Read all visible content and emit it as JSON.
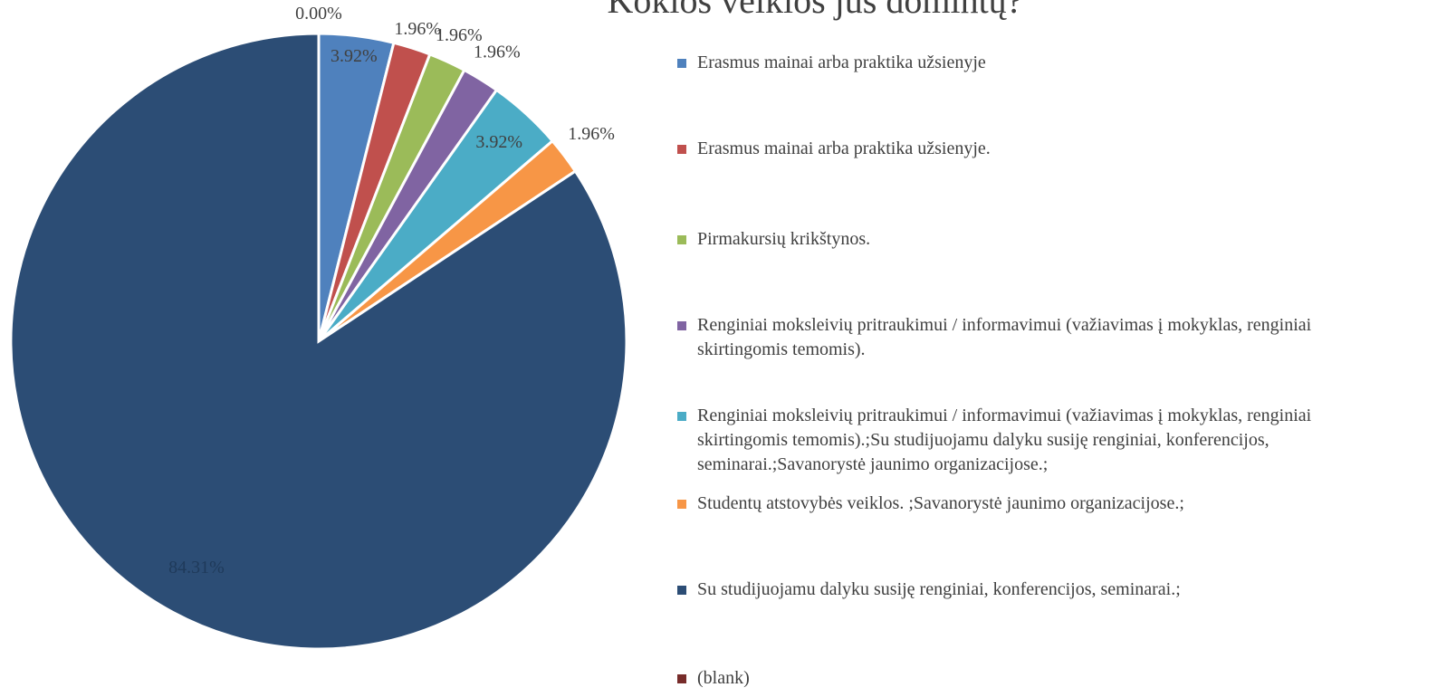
{
  "chart_data": {
    "type": "pie",
    "title": "Kokios veiklos jus domintų?",
    "categories": [
      "Erasmus mainai arba praktika užsienyje",
      "Erasmus mainai arba praktika užsienyje.",
      "Pirmakursių krikštynos.",
      "Renginiai moksleivių pritraukimui / informavimui (važiavimas į mokyklas, renginiai skirtingomis temomis).",
      "Renginiai moksleivių pritraukimui / informavimui (važiavimas į mokyklas, renginiai skirtingomis temomis).;Su studijuojamu dalyku susiję renginiai, konferencijos, seminarai.;Savanorystė jaunimo organizacijose.;",
      "Studentų atstovybės veiklos. ;Savanorystė jaunimo organizacijose.;",
      "Su studijuojamu dalyku susiję renginiai, konferencijos, seminarai.;",
      "(blank)"
    ],
    "values": [
      3.92,
      1.96,
      1.96,
      1.96,
      3.92,
      1.96,
      84.31,
      0.0
    ],
    "value_labels": [
      "3.92%",
      "1.96%",
      "1.96%",
      "1.96%",
      "3.92%",
      "1.96%",
      "84.31%",
      "0.00%"
    ],
    "colors": [
      "#4f81bd",
      "#c0504d",
      "#9bbb59",
      "#8064a2",
      "#4bacc6",
      "#f79646",
      "#2c4d75",
      "#772c2a"
    ],
    "legend": "right"
  }
}
